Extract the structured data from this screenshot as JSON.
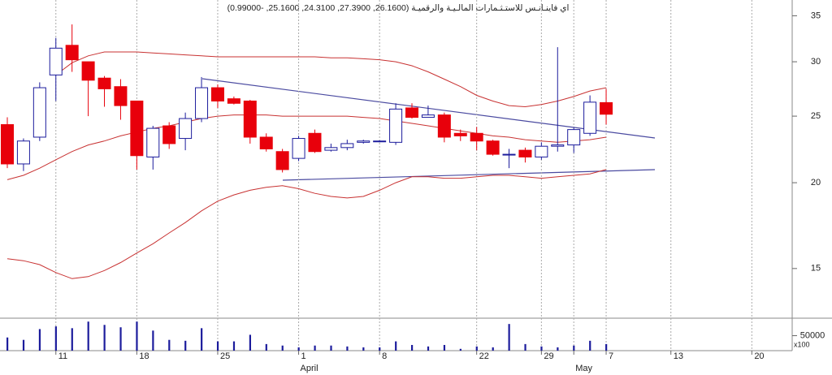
{
  "chart_data": {
    "type": "candlestick",
    "title": "اي فاينـانـس للاستـثـمارات المالـيـة والرقميـة (26.1600, 27.3900, 24.3100, 25.1600, -0.99000)",
    "categories": [
      null,
      null,
      null,
      "11",
      null,
      null,
      null,
      null,
      "18",
      null,
      null,
      null,
      null,
      "25",
      null,
      null,
      null,
      null,
      "1",
      null,
      null,
      null,
      null,
      "8",
      null,
      null,
      null,
      null,
      null,
      "22",
      null,
      null,
      null,
      "29",
      null,
      null,
      null,
      "7",
      null,
      null,
      null,
      "13",
      null,
      null,
      null,
      null,
      "20",
      null,
      null
    ],
    "months": [
      null,
      null,
      null,
      null,
      null,
      null,
      null,
      null,
      null,
      null,
      null,
      null,
      null,
      null,
      null,
      null,
      null,
      null,
      "April",
      null,
      null,
      null,
      null,
      null,
      null,
      null,
      null,
      null,
      null,
      null,
      null,
      null,
      null,
      null,
      null,
      "May",
      null,
      null,
      null,
      null,
      null,
      null,
      null,
      null,
      null,
      null,
      null,
      null,
      null
    ],
    "open": [
      24.3,
      21.3,
      23.3,
      28.7,
      31.7,
      30.0,
      28.4,
      27.6,
      26.3,
      21.8,
      24.2,
      23.2,
      24.8,
      27.5,
      26.5,
      26.3,
      23.3,
      22.2,
      21.7,
      23.6,
      22.3,
      22.5,
      22.9,
      22.95,
      22.9,
      25.7,
      24.9,
      25.1,
      23.6,
      23.6,
      23.0,
      21.95,
      22.3,
      21.8,
      22.6,
      22.7,
      23.6,
      26.16,
      null,
      null,
      null,
      null,
      null,
      null,
      null,
      null,
      null,
      null,
      null
    ],
    "high": [
      24.9,
      23.2,
      28.0,
      32.5,
      34.0,
      30.0,
      28.6,
      28.3,
      26.3,
      24.2,
      24.5,
      25.3,
      28.5,
      27.8,
      26.7,
      26.4,
      23.6,
      22.4,
      23.4,
      23.9,
      22.8,
      23.1,
      23.1,
      23.05,
      26.1,
      26.1,
      25.9,
      25.3,
      23.9,
      24.1,
      23.1,
      22.4,
      22.5,
      22.9,
      31.5,
      24.1,
      26.8,
      27.39,
      null,
      null,
      null,
      null,
      null,
      null,
      null,
      null,
      null,
      null,
      null
    ],
    "low": [
      21.0,
      20.8,
      23.0,
      26.3,
      29.0,
      25.0,
      25.8,
      24.7,
      20.9,
      20.9,
      22.4,
      22.3,
      24.5,
      25.7,
      26.0,
      22.8,
      22.2,
      20.7,
      21.5,
      22.1,
      22.2,
      22.3,
      22.8,
      22.9,
      22.7,
      24.8,
      24.9,
      22.9,
      23.0,
      22.3,
      21.9,
      21.0,
      21.4,
      21.6,
      22.2,
      22.1,
      23.4,
      24.31,
      null,
      null,
      null,
      null,
      null,
      null,
      null,
      null,
      null,
      null,
      null
    ],
    "close": [
      21.3,
      23.0,
      27.5,
      31.4,
      30.2,
      28.2,
      27.4,
      25.9,
      21.9,
      24.0,
      22.8,
      24.8,
      27.5,
      26.3,
      26.1,
      23.3,
      22.4,
      20.9,
      23.2,
      22.2,
      22.5,
      22.8,
      23.0,
      23.0,
      25.6,
      24.9,
      25.1,
      23.3,
      23.4,
      23.0,
      22.0,
      22.0,
      21.8,
      22.6,
      22.7,
      23.9,
      26.2,
      25.16,
      null,
      null,
      null,
      null,
      null,
      null,
      null,
      null,
      null,
      null,
      null
    ],
    "up_color": "#1c1c9c",
    "down_color": "#e8000b",
    "overlays": [
      {
        "color": "#c83232",
        "values": [
          null,
          null,
          null,
          28.7,
          29.9,
          30.6,
          31.0,
          31.0,
          31.0,
          30.9,
          30.8,
          30.7,
          30.6,
          30.5,
          30.5,
          30.5,
          30.5,
          30.5,
          30.5,
          30.5,
          30.4,
          30.4,
          30.3,
          30.2,
          30.0,
          29.6,
          29.0,
          28.3,
          27.6,
          26.8,
          26.3,
          25.9,
          25.8,
          26.0,
          26.3,
          26.7,
          27.2,
          27.5,
          null,
          null,
          null,
          null,
          null,
          null,
          null,
          null,
          null,
          null,
          null
        ]
      },
      {
        "color": "#c83232",
        "values": [
          20.2,
          20.5,
          21.0,
          21.6,
          22.2,
          22.7,
          23.0,
          23.4,
          23.7,
          24.0,
          24.2,
          24.5,
          24.8,
          25.0,
          25.1,
          25.1,
          25.1,
          25.0,
          25.0,
          25.0,
          25.0,
          25.0,
          24.9,
          24.8,
          24.6,
          24.4,
          24.2,
          24.0,
          23.8,
          23.6,
          23.4,
          23.3,
          23.1,
          23.0,
          22.9,
          23.0,
          23.1,
          23.3,
          null,
          null,
          null,
          null,
          null,
          null,
          null,
          null,
          null,
          null,
          null
        ]
      },
      {
        "color": "#c83232",
        "values": [
          15.5,
          15.4,
          15.2,
          14.8,
          14.5,
          14.6,
          14.9,
          15.3,
          15.8,
          16.3,
          16.9,
          17.5,
          18.2,
          18.8,
          19.2,
          19.5,
          19.7,
          19.8,
          19.6,
          19.3,
          19.1,
          19.0,
          19.1,
          19.5,
          20.0,
          20.4,
          20.4,
          20.3,
          20.3,
          20.4,
          20.5,
          20.5,
          20.4,
          20.3,
          20.4,
          20.5,
          20.6,
          20.9,
          null,
          null,
          null,
          null,
          null,
          null,
          null,
          null,
          null,
          null,
          null
        ]
      }
    ],
    "ylim": [
      12.7,
      36.9
    ],
    "yticks": [
      15,
      20,
      25,
      30,
      35
    ],
    "log_scale": true,
    "grid": "x",
    "volume": {
      "color": "#1c1c9c",
      "values": [
        44000,
        36000,
        72000,
        81000,
        75000,
        97000,
        86000,
        78000,
        97000,
        67000,
        36000,
        33000,
        75000,
        31000,
        31000,
        53000,
        22000,
        17000,
        11000,
        17000,
        17000,
        14000,
        11000,
        11000,
        31000,
        19000,
        14000,
        19000,
        6000,
        14000,
        11000,
        89000,
        22000,
        14000,
        11000,
        17000,
        33000,
        22000,
        null,
        null,
        null,
        null,
        null,
        null,
        null,
        null,
        null,
        null,
        null
      ],
      "ylim": [
        0,
        103000
      ],
      "yticks": [
        50000
      ],
      "unit_label": "x100"
    }
  }
}
